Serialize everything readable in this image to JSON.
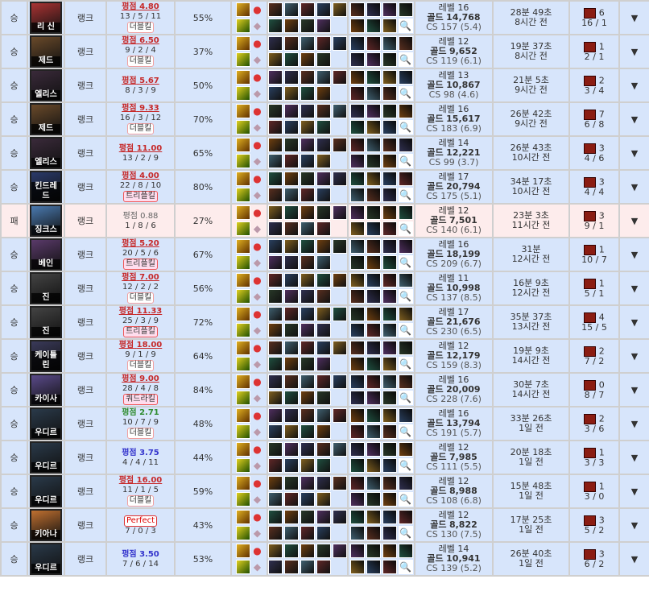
{
  "labels": {
    "queue": "랭크",
    "score_prefix": "평점",
    "level": "레벨",
    "gold": "골드",
    "cs": "CS",
    "arrow": "▼",
    "magnifier": "🔍"
  },
  "colors": {
    "win_bg": "#d7e5fb",
    "loss_bg": "#fdecec",
    "score_red": "#c62828"
  },
  "rows": [
    {
      "result": "승",
      "champion": "리 신",
      "score": "4.80",
      "grade": "red",
      "kda": "13 / 5 / 11",
      "multikill": "더블킬",
      "kp": "55%",
      "level": "16",
      "gold": "14,768",
      "cs": "157 (5.4)",
      "duration": "28분 49초",
      "ago": "8시간 전",
      "wards": "6",
      "ward_ratio": "16 / 1",
      "tint": "#a33"
    },
    {
      "result": "승",
      "champion": "제드",
      "score": "6.50",
      "grade": "red",
      "kda": "9 / 2 / 4",
      "multikill": "더블킬",
      "kp": "37%",
      "level": "12",
      "gold": "9,652",
      "cs": "119 (6.1)",
      "duration": "19분 37초",
      "ago": "8시간 전",
      "wards": "1",
      "ward_ratio": "2 / 1",
      "tint": "#6a4a2a"
    },
    {
      "result": "승",
      "champion": "엘리스",
      "score": "5.67",
      "grade": "red",
      "kda": "8 / 3 / 9",
      "multikill": "",
      "kp": "50%",
      "level": "13",
      "gold": "10,867",
      "cs": "98 (4.6)",
      "duration": "21분 5초",
      "ago": "9시간 전",
      "wards": "2",
      "ward_ratio": "3 / 4",
      "tint": "#3a2a3a"
    },
    {
      "result": "승",
      "champion": "제드",
      "score": "9.33",
      "grade": "red",
      "kda": "16 / 3 / 12",
      "multikill": "더블킬",
      "kp": "70%",
      "level": "16",
      "gold": "15,617",
      "cs": "183 (6.9)",
      "duration": "26분 42초",
      "ago": "9시간 전",
      "wards": "7",
      "ward_ratio": "6 / 8",
      "tint": "#6a4a2a"
    },
    {
      "result": "승",
      "champion": "엘리스",
      "score": "11.00",
      "grade": "red",
      "kda": "13 / 2 / 9",
      "multikill": "",
      "kp": "65%",
      "level": "14",
      "gold": "12,221",
      "cs": "99 (3.7)",
      "duration": "26분 43초",
      "ago": "10시간 전",
      "wards": "3",
      "ward_ratio": "4 / 6",
      "tint": "#3a2a3a"
    },
    {
      "result": "승",
      "champion": "킨드레드",
      "score": "4.00",
      "grade": "red",
      "kda": "22 / 8 / 10",
      "multikill": "트리플킬",
      "kp": "80%",
      "level": "17",
      "gold": "20,794",
      "cs": "175 (5.1)",
      "duration": "34분 17초",
      "ago": "10시간 전",
      "wards": "3",
      "ward_ratio": "4 / 4",
      "tint": "#2a3a6a"
    },
    {
      "result": "패",
      "champion": "징크스",
      "score": "0.88",
      "grade": "gray",
      "kda": "1 / 8 / 6",
      "multikill": "",
      "kp": "27%",
      "level": "12",
      "gold": "7,501",
      "cs": "140 (6.1)",
      "duration": "23분 3초",
      "ago": "11시간 전",
      "wards": "3",
      "ward_ratio": "9 / 1",
      "tint": "#4a7ab0"
    },
    {
      "result": "승",
      "champion": "베인",
      "score": "5.20",
      "grade": "red",
      "kda": "20 / 5 / 6",
      "multikill": "트리플킬",
      "kp": "67%",
      "level": "16",
      "gold": "18,199",
      "cs": "209 (6.7)",
      "duration": "31분",
      "ago": "12시간 전",
      "wards": "1",
      "ward_ratio": "10 / 7",
      "tint": "#5a3a6a"
    },
    {
      "result": "승",
      "champion": "진",
      "score": "7.00",
      "grade": "red",
      "kda": "12 / 2 / 2",
      "multikill": "더블킬",
      "kp": "56%",
      "level": "11",
      "gold": "10,998",
      "cs": "137 (8.5)",
      "duration": "16분 9초",
      "ago": "12시간 전",
      "wards": "1",
      "ward_ratio": "5 / 1",
      "tint": "#444"
    },
    {
      "result": "승",
      "champion": "진",
      "score": "11.33",
      "grade": "red",
      "kda": "25 / 3 / 9",
      "multikill": "트리플킬",
      "kp": "72%",
      "level": "17",
      "gold": "21,676",
      "cs": "230 (6.5)",
      "duration": "35분 37초",
      "ago": "13시간 전",
      "wards": "4",
      "ward_ratio": "15 / 5",
      "tint": "#444"
    },
    {
      "result": "승",
      "champion": "케이틀린",
      "score": "18.00",
      "grade": "red",
      "kda": "9 / 1 / 9",
      "multikill": "더블킬",
      "kp": "64%",
      "level": "12",
      "gold": "12,179",
      "cs": "159 (8.3)",
      "duration": "19분 9초",
      "ago": "14시간 전",
      "wards": "2",
      "ward_ratio": "7 / 2",
      "tint": "#3a3a5a"
    },
    {
      "result": "승",
      "champion": "카이사",
      "score": "9.00",
      "grade": "red",
      "kda": "28 / 4 / 8",
      "multikill": "쿼드라킬",
      "kp": "84%",
      "level": "16",
      "gold": "20,009",
      "cs": "228 (7.6)",
      "duration": "30분 7초",
      "ago": "14시간 전",
      "wards": "0",
      "ward_ratio": "8 / 7",
      "tint": "#5a4a8a"
    },
    {
      "result": "승",
      "champion": "우디르",
      "score": "2.71",
      "grade": "green",
      "kda": "10 / 7 / 9",
      "multikill": "더블킬",
      "kp": "48%",
      "level": "16",
      "gold": "13,794",
      "cs": "191 (5.7)",
      "duration": "33분 26초",
      "ago": "1일 전",
      "wards": "2",
      "ward_ratio": "3 / 6",
      "tint": "#2a3a4a"
    },
    {
      "result": "승",
      "champion": "우디르",
      "score": "3.75",
      "grade": "blue",
      "kda": "4 / 4 / 11",
      "multikill": "",
      "kp": "44%",
      "level": "12",
      "gold": "7,985",
      "cs": "111 (5.5)",
      "duration": "20분 18초",
      "ago": "1일 전",
      "wards": "1",
      "ward_ratio": "3 / 3",
      "tint": "#2a3a4a"
    },
    {
      "result": "승",
      "champion": "우디르",
      "score": "16.00",
      "grade": "red",
      "kda": "11 / 1 / 5",
      "multikill": "더블킬",
      "kp": "59%",
      "level": "12",
      "gold": "8,988",
      "cs": "108 (6.8)",
      "duration": "15분 48초",
      "ago": "1일 전",
      "wards": "1",
      "ward_ratio": "3 / 0",
      "tint": "#2a3a4a"
    },
    {
      "result": "승",
      "champion": "키아나",
      "score": "Perfect",
      "grade": "perfect",
      "kda": "7 / 0 / 3",
      "multikill": "",
      "kp": "43%",
      "level": "12",
      "gold": "8,822",
      "cs": "130 (7.5)",
      "duration": "17분 25초",
      "ago": "1일 전",
      "wards": "3",
      "ward_ratio": "5 / 2",
      "tint": "#c07030"
    },
    {
      "result": "승",
      "champion": "우디르",
      "score": "3.50",
      "grade": "blue",
      "kda": "7 / 6 / 14",
      "multikill": "",
      "kp": "53%",
      "level": "14",
      "gold": "10,941",
      "cs": "139 (5.2)",
      "duration": "26분 40초",
      "ago": "1일 전",
      "wards": "3",
      "ward_ratio": "6 / 2",
      "tint": "#2a3a4a"
    }
  ]
}
